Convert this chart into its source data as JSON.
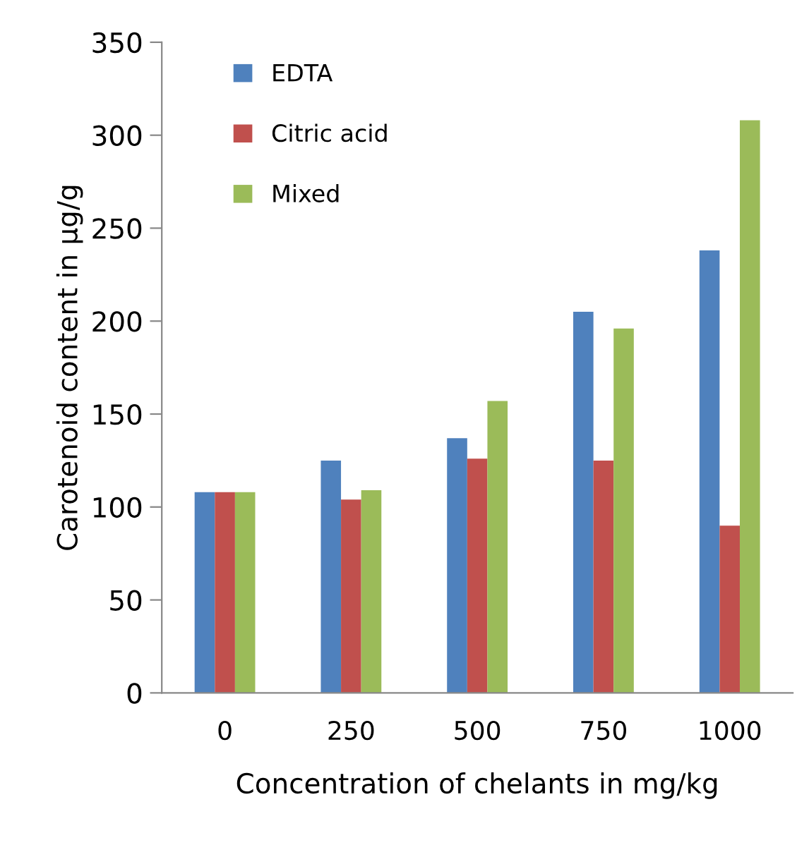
{
  "chart_data": {
    "type": "bar",
    "xlabel": "Concentration of chelants in mg/kg",
    "ylabel": "Carotenoid content in µg/g",
    "categories": [
      "0",
      "250",
      "500",
      "750",
      "1000"
    ],
    "series": [
      {
        "name": "EDTA",
        "color": "#4f81bd",
        "values": [
          108,
          125,
          137,
          205,
          238
        ]
      },
      {
        "name": "Citric acid",
        "color": "#c0504d",
        "values": [
          108,
          104,
          126,
          125,
          90
        ]
      },
      {
        "name": "Mixed",
        "color": "#9bbb59",
        "values": [
          108,
          109,
          157,
          196,
          308
        ]
      }
    ],
    "ylim": [
      0,
      350
    ],
    "yticks": [
      0,
      50,
      100,
      150,
      200,
      250,
      300,
      350
    ],
    "grid": false,
    "legend": "top left"
  }
}
